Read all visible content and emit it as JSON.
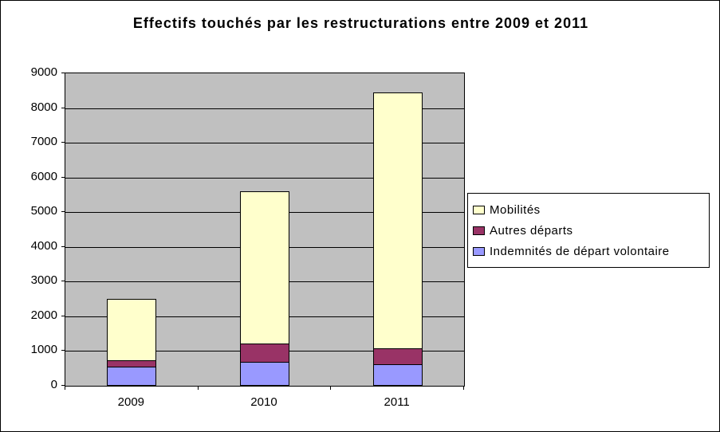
{
  "chart_data": {
    "type": "bar",
    "stacked": true,
    "title": "Effectifs touchés par les restructurations entre 2009 et 2011",
    "categories": [
      "2009",
      "2010",
      "2011"
    ],
    "series": [
      {
        "name": "Indemnités de départ volontaire",
        "color": "#9999FF",
        "values": [
          550,
          700,
          620
        ]
      },
      {
        "name": "Autres départs",
        "color": "#993366",
        "values": [
          200,
          550,
          480
        ]
      },
      {
        "name": "Mobilités",
        "color": "#FFFFCC",
        "values": [
          1800,
          4400,
          7400
        ]
      }
    ],
    "legend_order": [
      "Mobilités",
      "Autres départs",
      "Indemnités de départ volontaire"
    ],
    "ylim": [
      0,
      9000
    ],
    "ytick_interval": 1000,
    "xlabel": "",
    "ylabel": "",
    "grid": true,
    "legend_position": "right",
    "plot_background": "#C0C0C0",
    "background": "#FFFFFF"
  }
}
